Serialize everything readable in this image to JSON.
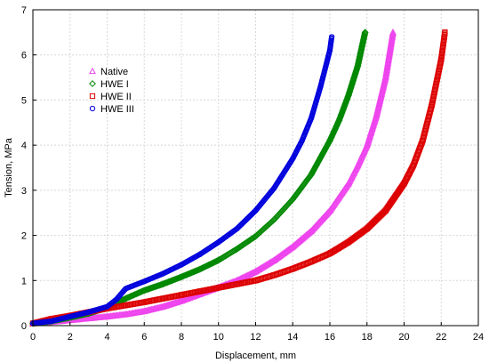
{
  "chart_data": {
    "type": "scatter",
    "title": "",
    "xlabel": "Displacement, mm",
    "ylabel": "Tension, MPa",
    "xlim": [
      0,
      24
    ],
    "ylim": [
      0,
      7
    ],
    "xticks": [
      0,
      2,
      4,
      6,
      8,
      10,
      12,
      14,
      16,
      18,
      20,
      22,
      24
    ],
    "yticks": [
      0,
      1,
      2,
      3,
      4,
      5,
      6,
      7
    ],
    "grid": true,
    "legend_position": "upper-left",
    "series": [
      {
        "name": "Native",
        "marker": "triangle",
        "color": "#ee44ee",
        "x": [
          0,
          1,
          2,
          3,
          4,
          5,
          6,
          7,
          8,
          9,
          10,
          11,
          12,
          13,
          14,
          15,
          16,
          17,
          17.5,
          18,
          18.5,
          19,
          19.4
        ],
        "y": [
          0.05,
          0.08,
          0.12,
          0.16,
          0.2,
          0.25,
          0.32,
          0.42,
          0.55,
          0.7,
          0.85,
          1.0,
          1.2,
          1.45,
          1.75,
          2.1,
          2.55,
          3.15,
          3.55,
          4.0,
          4.65,
          5.5,
          6.5
        ]
      },
      {
        "name": "HWE I",
        "marker": "diamond",
        "color": "#008800",
        "x": [
          0,
          1,
          2,
          3,
          4,
          5,
          6,
          7,
          8,
          9,
          10,
          11,
          12,
          13,
          14,
          15,
          16,
          16.5,
          17,
          17.5,
          17.9
        ],
        "y": [
          0.05,
          0.1,
          0.18,
          0.27,
          0.4,
          0.6,
          0.78,
          0.92,
          1.08,
          1.25,
          1.45,
          1.7,
          1.98,
          2.35,
          2.8,
          3.35,
          4.1,
          4.55,
          5.1,
          5.75,
          6.5
        ]
      },
      {
        "name": "HWE II",
        "marker": "square",
        "color": "#dd0000",
        "x": [
          0,
          1,
          2,
          3,
          4,
          5,
          6,
          7,
          8,
          9,
          10,
          11,
          12,
          13,
          14,
          15,
          16,
          17,
          18,
          19,
          20,
          20.5,
          21,
          21.5,
          22,
          22.2
        ],
        "y": [
          0.05,
          0.15,
          0.22,
          0.3,
          0.38,
          0.45,
          0.52,
          0.6,
          0.68,
          0.76,
          0.84,
          0.92,
          1.0,
          1.12,
          1.26,
          1.42,
          1.6,
          1.85,
          2.15,
          2.55,
          3.15,
          3.55,
          4.1,
          4.9,
          5.9,
          6.5
        ]
      },
      {
        "name": "HWE III",
        "marker": "circle",
        "color": "#0000dd",
        "x": [
          0,
          1,
          2,
          3,
          4,
          4.5,
          5,
          6,
          7,
          8,
          9,
          10,
          11,
          12,
          13,
          14,
          14.5,
          15,
          15.5,
          16,
          16.1
        ],
        "y": [
          0.05,
          0.1,
          0.2,
          0.3,
          0.42,
          0.58,
          0.82,
          0.98,
          1.15,
          1.35,
          1.58,
          1.85,
          2.15,
          2.55,
          3.05,
          3.7,
          4.1,
          4.6,
          5.3,
          6.1,
          6.4
        ]
      }
    ]
  }
}
